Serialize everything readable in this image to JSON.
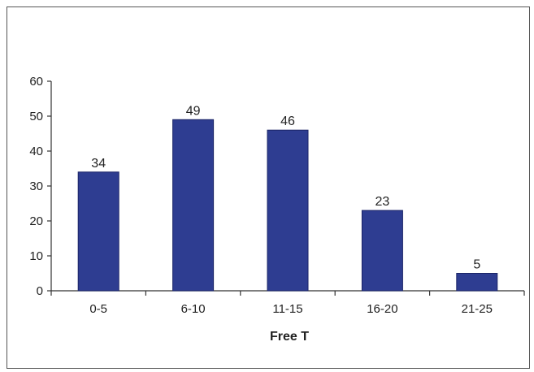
{
  "chart_data": {
    "type": "bar",
    "categories": [
      "0-5",
      "6-10",
      "11-15",
      "16-20",
      "21-25"
    ],
    "values": [
      34,
      49,
      46,
      23,
      5
    ],
    "data_labels": [
      "34",
      "49",
      "46",
      "23",
      "5"
    ],
    "xlabel": "Free T",
    "ylabel": "",
    "ylim": [
      0,
      60
    ],
    "yticks": [
      0,
      10,
      20,
      30,
      40,
      50,
      60
    ],
    "grid": false,
    "legend": "none",
    "bar_color": "#2e3d91",
    "bar_edge_color": "#1a2466"
  }
}
